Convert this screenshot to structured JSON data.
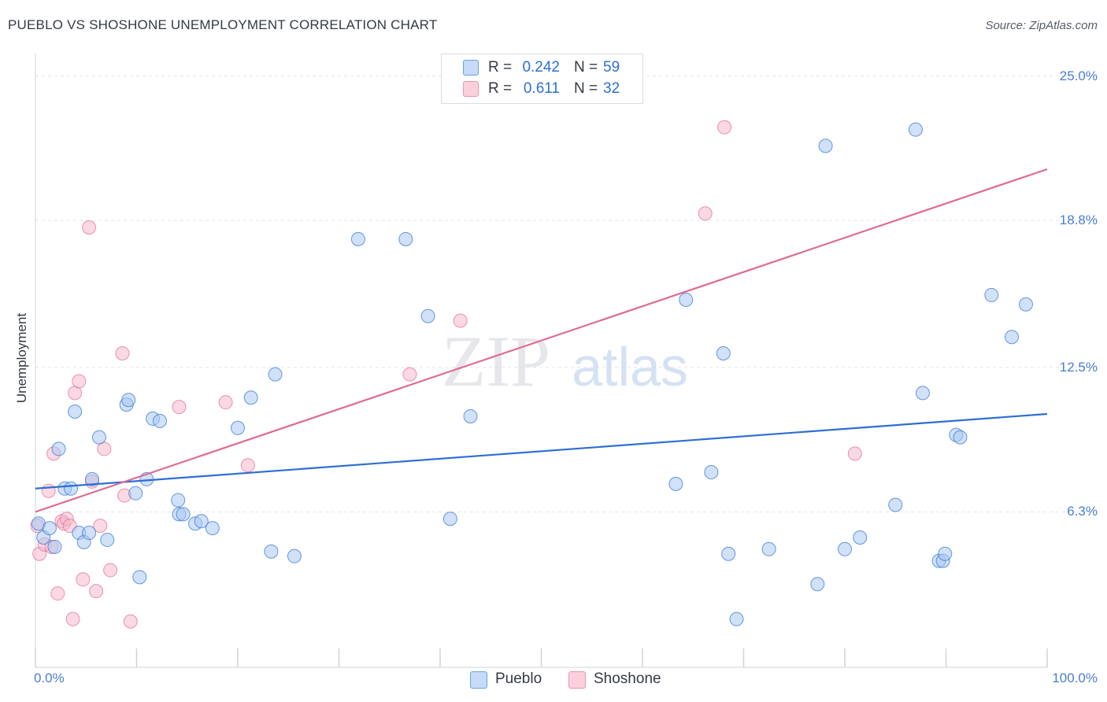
{
  "header": {
    "title": "PUEBLO VS SHOSHONE UNEMPLOYMENT CORRELATION CHART",
    "source": "Source: ZipAtlas.com"
  },
  "watermark": {
    "zip": "ZIP",
    "atlas": "atlas"
  },
  "colors": {
    "pueblo_fill": "#a9c8f2",
    "pueblo_line": "#2e6fd3",
    "shoshone_fill": "#f6b9cc",
    "shoshone_line": "#e06a93",
    "grid": "#e2e5ea",
    "axis_text": "#4a7fd0"
  },
  "stats": [
    {
      "series": "Pueblo",
      "r_label": "R =",
      "r_value": "0.242",
      "n_label": "N =",
      "n_value": "59"
    },
    {
      "series": "Shoshone",
      "r_label": "R =",
      "r_value": "0.611",
      "n_label": "N =",
      "n_value": "32"
    }
  ],
  "legend": [
    "Pueblo",
    "Shoshone"
  ],
  "chart_data": {
    "type": "scatter",
    "title": "PUEBLO VS SHOSHONE UNEMPLOYMENT CORRELATION CHART",
    "xlabel": "",
    "ylabel": "Unemployment",
    "xlim": [
      0,
      100
    ],
    "ylim": [
      0,
      25
    ],
    "x_tick_labels": [
      {
        "value": 0,
        "label": "0.0%"
      },
      {
        "value": 100,
        "label": "100.0%"
      }
    ],
    "y_tick_labels": [
      {
        "value": 6.3,
        "label": "6.3%"
      },
      {
        "value": 12.5,
        "label": "12.5%"
      },
      {
        "value": 18.8,
        "label": "18.8%"
      },
      {
        "value": 25.0,
        "label": "25.0%"
      }
    ],
    "grid": true,
    "series": [
      {
        "name": "Pueblo",
        "r": 0.242,
        "n": 59,
        "trend": {
          "x": [
            0,
            100
          ],
          "y": [
            7.3,
            10.5
          ]
        },
        "points": [
          [
            0.3,
            5.8
          ],
          [
            0.8,
            5.2
          ],
          [
            1.4,
            5.6
          ],
          [
            1.9,
            4.8
          ],
          [
            2.3,
            9.0
          ],
          [
            2.9,
            7.3
          ],
          [
            3.5,
            7.3
          ],
          [
            3.9,
            10.6
          ],
          [
            4.3,
            5.4
          ],
          [
            4.8,
            5.0
          ],
          [
            5.3,
            5.4
          ],
          [
            5.6,
            7.7
          ],
          [
            6.3,
            9.5
          ],
          [
            7.1,
            5.1
          ],
          [
            9.0,
            10.9
          ],
          [
            9.2,
            11.1
          ],
          [
            9.9,
            7.1
          ],
          [
            10.3,
            3.5
          ],
          [
            11.0,
            7.7
          ],
          [
            11.6,
            10.3
          ],
          [
            12.3,
            10.2
          ],
          [
            14.1,
            6.8
          ],
          [
            14.2,
            6.2
          ],
          [
            14.6,
            6.2
          ],
          [
            15.8,
            5.8
          ],
          [
            16.4,
            5.9
          ],
          [
            17.5,
            5.6
          ],
          [
            20.0,
            9.9
          ],
          [
            21.3,
            11.2
          ],
          [
            23.3,
            4.6
          ],
          [
            23.7,
            12.2
          ],
          [
            25.6,
            4.4
          ],
          [
            31.9,
            18.0
          ],
          [
            36.6,
            18.0
          ],
          [
            38.8,
            14.7
          ],
          [
            41.0,
            6.0
          ],
          [
            43.0,
            10.4
          ],
          [
            63.3,
            7.5
          ],
          [
            64.3,
            15.4
          ],
          [
            66.8,
            8.0
          ],
          [
            68.0,
            13.1
          ],
          [
            68.5,
            4.5
          ],
          [
            69.3,
            1.7
          ],
          [
            72.5,
            4.7
          ],
          [
            77.3,
            3.2
          ],
          [
            78.1,
            22.0
          ],
          [
            80.0,
            4.7
          ],
          [
            81.5,
            5.2
          ],
          [
            85.0,
            6.6
          ],
          [
            87.0,
            22.7
          ],
          [
            87.7,
            11.4
          ],
          [
            89.3,
            4.2
          ],
          [
            89.7,
            4.2
          ],
          [
            89.9,
            4.5
          ],
          [
            91.0,
            9.6
          ],
          [
            91.4,
            9.5
          ],
          [
            94.5,
            15.6
          ],
          [
            96.5,
            13.8
          ],
          [
            97.9,
            15.2
          ]
        ]
      },
      {
        "name": "Shoshone",
        "r": 0.611,
        "n": 32,
        "trend": {
          "x": [
            0,
            100
          ],
          "y": [
            6.3,
            21.0
          ]
        },
        "points": [
          [
            0.4,
            4.5
          ],
          [
            0.9,
            4.9
          ],
          [
            1.3,
            7.2
          ],
          [
            1.6,
            4.8
          ],
          [
            1.8,
            8.8
          ],
          [
            2.2,
            2.8
          ],
          [
            2.6,
            5.9
          ],
          [
            2.8,
            5.8
          ],
          [
            3.1,
            6.0
          ],
          [
            3.4,
            5.7
          ],
          [
            3.7,
            1.7
          ],
          [
            3.9,
            11.4
          ],
          [
            4.3,
            11.9
          ],
          [
            4.7,
            3.4
          ],
          [
            5.3,
            18.5
          ],
          [
            5.6,
            7.6
          ],
          [
            6.0,
            2.9
          ],
          [
            6.4,
            5.7
          ],
          [
            6.8,
            9.0
          ],
          [
            7.4,
            3.8
          ],
          [
            8.6,
            13.1
          ],
          [
            8.8,
            7.0
          ],
          [
            9.4,
            1.6
          ],
          [
            14.2,
            10.8
          ],
          [
            18.8,
            11.0
          ],
          [
            21.0,
            8.3
          ],
          [
            37.0,
            12.2
          ],
          [
            42.0,
            14.5
          ],
          [
            66.2,
            19.1
          ],
          [
            68.1,
            22.8
          ],
          [
            81.0,
            8.8
          ],
          [
            0.2,
            5.7
          ]
        ]
      }
    ]
  }
}
